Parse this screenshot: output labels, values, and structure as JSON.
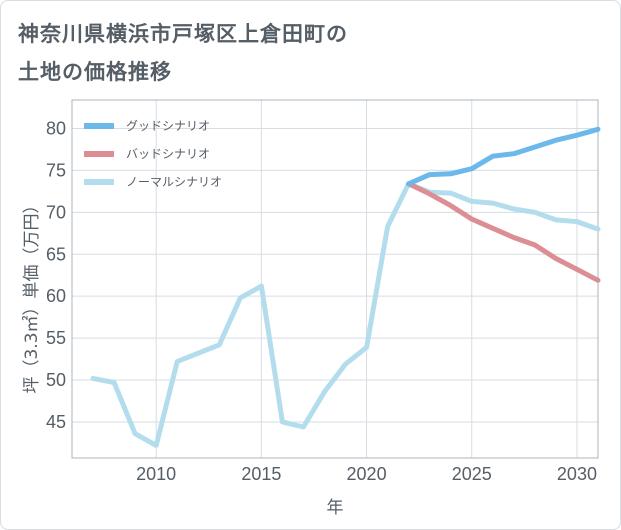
{
  "title": {
    "line1": "神奈川県横浜市戸塚区上倉田町の",
    "line2": "土地の価格推移"
  },
  "chart_data": {
    "type": "line",
    "xlabel": "年",
    "ylabel": "坪（3.3㎡）単価（万円）",
    "xlim": [
      2006,
      2031
    ],
    "ylim": [
      40.7,
      83.4
    ],
    "xticks": [
      2010,
      2015,
      2020,
      2025,
      2030
    ],
    "yticks": [
      45,
      50,
      55,
      60,
      65,
      70,
      75,
      80
    ],
    "grid": true,
    "legend_position": "top-left",
    "series": [
      {
        "name": "グッドシナリオ",
        "color": "#6cb8eb",
        "x": [
          2022,
          2023,
          2024,
          2025,
          2026,
          2027,
          2028,
          2029,
          2030,
          2031
        ],
        "values": [
          73.4,
          74.5,
          74.6,
          75.2,
          76.7,
          77.0,
          77.8,
          78.6,
          79.2,
          79.9
        ]
      },
      {
        "name": "バッドシナリオ",
        "color": "#dc8e95",
        "x": [
          2022,
          2023,
          2024,
          2025,
          2026,
          2027,
          2028,
          2029,
          2030,
          2031
        ],
        "values": [
          73.4,
          72.2,
          70.8,
          69.2,
          68.1,
          67.0,
          66.1,
          64.5,
          63.2,
          61.9
        ]
      },
      {
        "name": "ノーマルシナリオ",
        "color": "#b3dded",
        "x": [
          2007,
          2008,
          2009,
          2010,
          2011,
          2012,
          2013,
          2014,
          2015,
          2016,
          2017,
          2018,
          2019,
          2020,
          2021,
          2022,
          2023,
          2024,
          2025,
          2026,
          2027,
          2028,
          2029,
          2030,
          2031
        ],
        "values": [
          50.2,
          49.7,
          43.6,
          42.2,
          52.2,
          53.2,
          54.2,
          59.8,
          61.2,
          45.0,
          44.4,
          48.6,
          51.9,
          53.9,
          68.3,
          73.4,
          72.4,
          72.3,
          71.3,
          71.1,
          70.4,
          70.0,
          69.1,
          68.9,
          68.0
        ]
      }
    ]
  }
}
